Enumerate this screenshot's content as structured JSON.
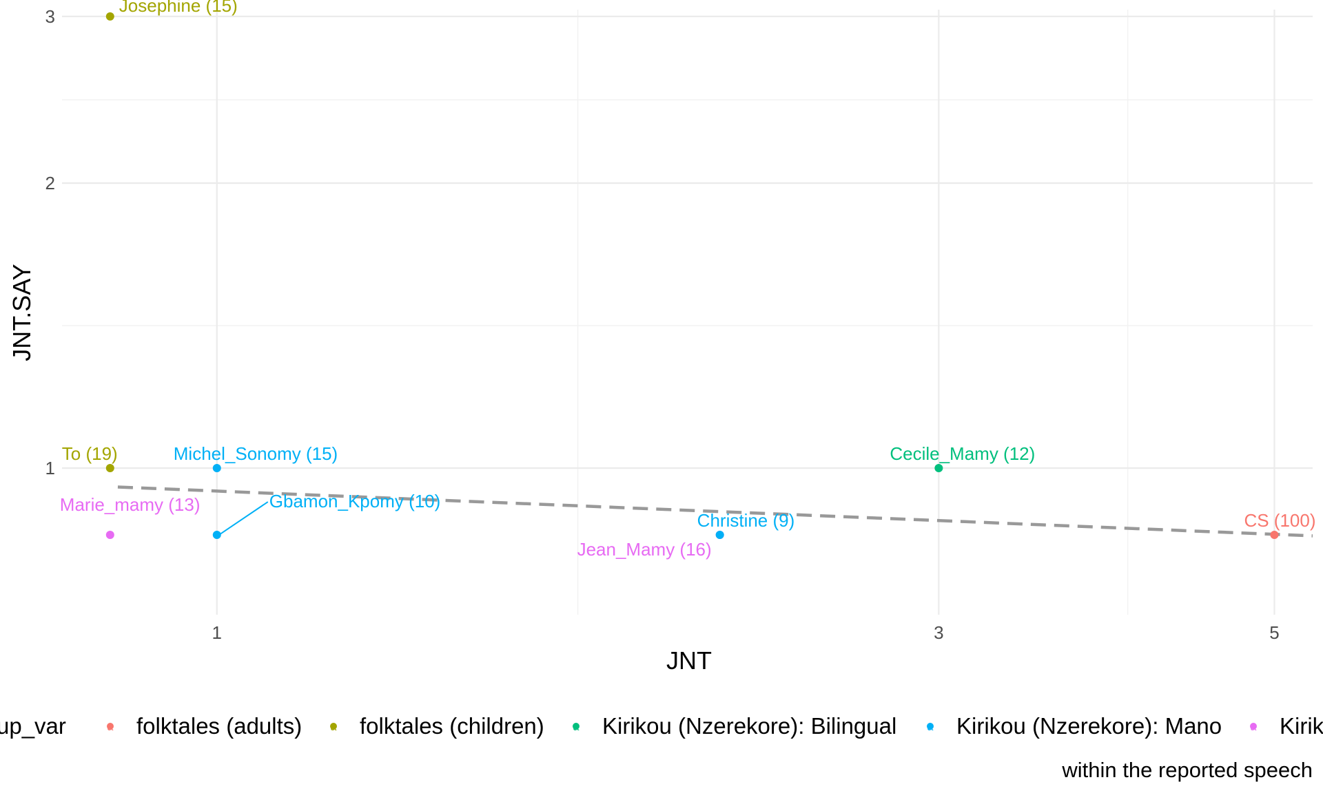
{
  "chart_data": {
    "type": "scatter",
    "title": "",
    "xlabel": "JNT",
    "ylabel": "JNT.SAY",
    "x_scale": "log",
    "y_scale": "log",
    "x_ticks": [
      1,
      3,
      5
    ],
    "y_ticks": [
      1,
      2,
      3
    ],
    "xlim": [
      0.79,
      5.3
    ],
    "ylim": [
      0.7,
      3.05
    ],
    "grid": true,
    "legend_position": "bottom",
    "legend_title": "up_var",
    "legend_key_glyph": "a",
    "caption": "within the reported speech",
    "trend_line": {
      "style": "dashed",
      "color": "#999999",
      "x": [
        0.86,
        5.3
      ],
      "y": [
        0.955,
        0.848
      ]
    },
    "series": [
      {
        "name": "folktales (adults)",
        "color": "#F8766D"
      },
      {
        "name": "folktales (children)",
        "color": "#A3A500"
      },
      {
        "name": "Kirikou (Nzerekore): Bilingual",
        "color": "#00BF7D"
      },
      {
        "name": "Kirikou (Nzerekore): Mano",
        "color": "#00B0F6"
      },
      {
        "name": "Kirik",
        "color": "#E76BF3"
      }
    ],
    "points": [
      {
        "x": 0.85,
        "y": 3.0,
        "series": 1,
        "label": "Josephine (15)"
      },
      {
        "x": 0.85,
        "y": 1.0,
        "series": 1,
        "label": "To (19)"
      },
      {
        "x": 1.0,
        "y": 1.0,
        "series": 3,
        "label": "Michel_Sonomy (15)"
      },
      {
        "x": 1.0,
        "y": 0.85,
        "series": 3,
        "label": "Gbamon_Kpomy (10)"
      },
      {
        "x": 0.85,
        "y": 0.85,
        "series": 4,
        "label": "Marie_mamy (13)"
      },
      {
        "x": 2.15,
        "y": 0.85,
        "series": 4,
        "label": "Jean_Mamy (16)"
      },
      {
        "x": 2.15,
        "y": 0.85,
        "series": 3,
        "label": "Christine (9)"
      },
      {
        "x": 3.0,
        "y": 1.0,
        "series": 2,
        "label": "Cecile_Mamy (12)"
      },
      {
        "x": 5.0,
        "y": 0.85,
        "series": 0,
        "label": "CS (100)"
      }
    ]
  }
}
